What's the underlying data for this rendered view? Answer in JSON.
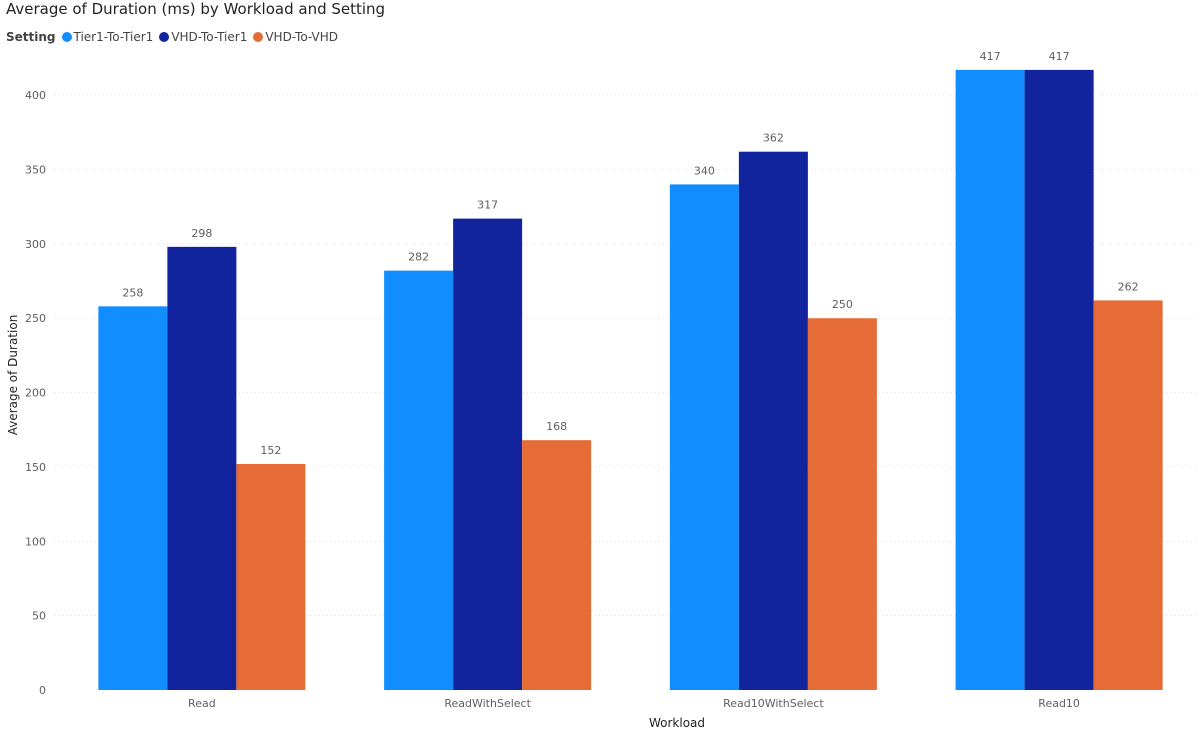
{
  "chart_data": {
    "type": "bar",
    "title": "Average of Duration (ms) by Workload and Setting",
    "legend_title": "Setting",
    "legend_position": "top-left",
    "xlabel": "Workload",
    "ylabel": "Average of Duration",
    "categories": [
      "Read",
      "ReadWithSelect",
      "Read10WithSelect",
      "Read10"
    ],
    "ylim": [
      0,
      425
    ],
    "yticks": [
      0,
      50,
      100,
      150,
      200,
      250,
      300,
      350,
      400
    ],
    "grid": true,
    "series": [
      {
        "name": "Tier1-To-Tier1",
        "color": "#118DFF",
        "values": [
          258,
          282,
          340,
          417
        ]
      },
      {
        "name": "VHD-To-Tier1",
        "color": "#12239E",
        "values": [
          298,
          317,
          362,
          417
        ]
      },
      {
        "name": "VHD-To-VHD",
        "color": "#E66C37",
        "values": [
          152,
          168,
          250,
          262
        ]
      }
    ]
  }
}
